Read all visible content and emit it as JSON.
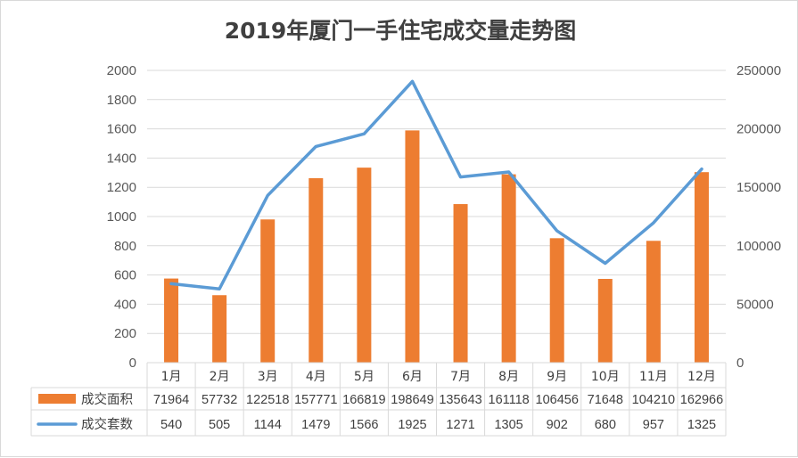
{
  "chart_data": {
    "type": "bar+line",
    "title": "2019年厦门一手住宅成交量走势图",
    "categories": [
      "1月",
      "2月",
      "3月",
      "4月",
      "5月",
      "6月",
      "7月",
      "8月",
      "9月",
      "10月",
      "11月",
      "12月"
    ],
    "series": [
      {
        "name": "成交面积",
        "type": "bar",
        "axis": "right",
        "color": "#ed7d31",
        "values": [
          71964,
          57732,
          122518,
          157771,
          166819,
          198649,
          135643,
          161118,
          106456,
          71648,
          104210,
          162966
        ]
      },
      {
        "name": "成交套数",
        "type": "line",
        "axis": "left",
        "color": "#5b9bd5",
        "values": [
          540,
          505,
          1144,
          1479,
          1566,
          1925,
          1271,
          1305,
          902,
          680,
          957,
          1325
        ]
      }
    ],
    "left_axis": {
      "min": 0,
      "max": 2000,
      "step": 200,
      "ticks": [
        "0",
        "200",
        "400",
        "600",
        "800",
        "1000",
        "1200",
        "1400",
        "1600",
        "1800",
        "2000"
      ]
    },
    "right_axis": {
      "min": 0,
      "max": 250000,
      "step": 50000,
      "ticks": [
        "0",
        "50000",
        "100000",
        "150000",
        "200000",
        "250000"
      ]
    },
    "grid": true,
    "legend": "data-table-bottom"
  }
}
